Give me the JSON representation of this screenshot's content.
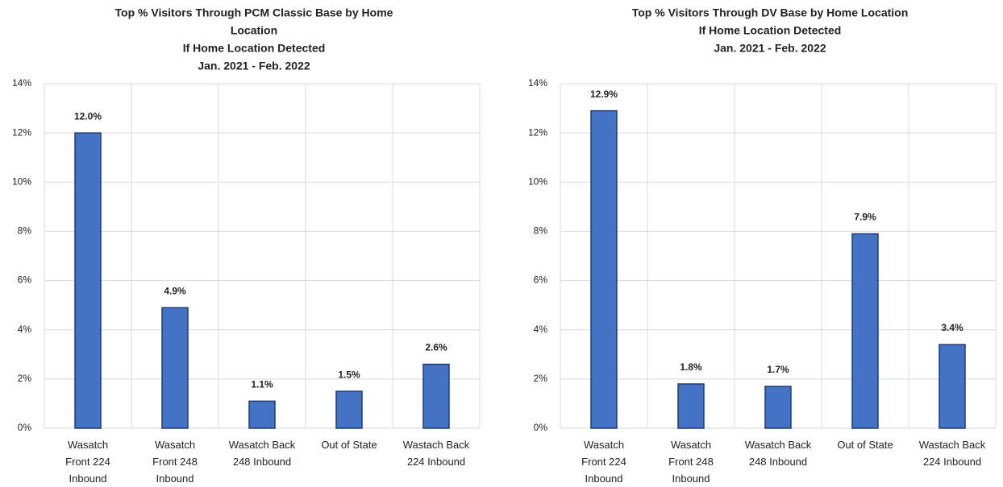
{
  "chart_data": [
    {
      "type": "bar",
      "title": [
        "Top % Visitors Through PCM Classic Base by Home",
        "Location",
        "If Home Location Detected",
        "Jan. 2021 - Feb. 2022"
      ],
      "categories": [
        [
          "Wasatch",
          "Front 224",
          "Inbound"
        ],
        [
          "Wasatch",
          "Front 248",
          "Inbound"
        ],
        [
          "Wasatch Back",
          "248 Inbound"
        ],
        [
          "Out of State"
        ],
        [
          "Wastach Back",
          "224 Inbound"
        ]
      ],
      "values": [
        12.0,
        4.9,
        1.1,
        1.5,
        2.6
      ],
      "value_labels": [
        "12.0%",
        "4.9%",
        "1.1%",
        "1.5%",
        "2.6%"
      ],
      "color": "#4472c4",
      "ylim": [
        0,
        14
      ],
      "yticks": [
        {
          "value": 0,
          "label": "0%"
        },
        {
          "value": 2,
          "label": "2%"
        },
        {
          "value": 4,
          "label": "4%"
        },
        {
          "value": 6,
          "label": "6%"
        },
        {
          "value": 8,
          "label": "8%"
        },
        {
          "value": 10,
          "label": "10%"
        },
        {
          "value": 12,
          "label": "12%"
        },
        {
          "value": 14,
          "label": "14%"
        }
      ],
      "grid": true
    },
    {
      "type": "bar",
      "title": [
        "Top % Visitors Through DV Base by Home Location",
        "If Home Location Detected",
        "Jan. 2021 - Feb. 2022"
      ],
      "categories": [
        [
          "Wasatch",
          "Front 224",
          "Inbound"
        ],
        [
          "Wasatch",
          "Front 248",
          "Inbound"
        ],
        [
          "Wasatch Back",
          "248 Inbound"
        ],
        [
          "Out of State"
        ],
        [
          "Wastach Back",
          "224 Inbound"
        ]
      ],
      "values": [
        12.9,
        1.8,
        1.7,
        7.9,
        3.4
      ],
      "value_labels": [
        "12.9%",
        "1.8%",
        "1.7%",
        "7.9%",
        "3.4%"
      ],
      "color": "#4472c4",
      "ylim": [
        0,
        14
      ],
      "yticks": [
        {
          "value": 0,
          "label": "0%"
        },
        {
          "value": 2,
          "label": "2%"
        },
        {
          "value": 4,
          "label": "4%"
        },
        {
          "value": 6,
          "label": "6%"
        },
        {
          "value": 8,
          "label": "8%"
        },
        {
          "value": 10,
          "label": "10%"
        },
        {
          "value": 12,
          "label": "12%"
        },
        {
          "value": 14,
          "label": "14%"
        }
      ],
      "grid": true
    }
  ]
}
